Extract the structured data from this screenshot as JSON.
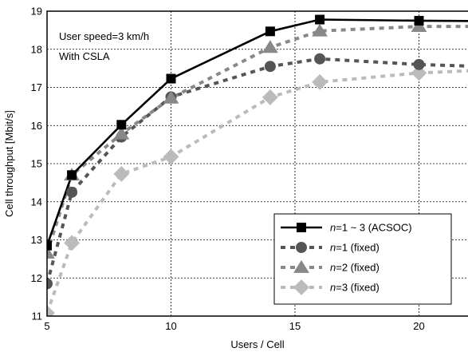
{
  "chart_data": {
    "type": "line",
    "title": "",
    "xlabel": "Users / Cell",
    "ylabel": "Cell throughput [Mbit/s]",
    "xlim": [
      5,
      22.5
    ],
    "ylim": [
      11,
      19
    ],
    "xticks": [
      5,
      10,
      15,
      20
    ],
    "yticks": [
      11,
      12,
      13,
      14,
      15,
      16,
      17,
      18,
      19
    ],
    "grid": true,
    "annotations": [
      "User speed=3 km/h",
      "With CSLA"
    ],
    "legend_position": "bottom-right",
    "series": [
      {
        "name": "n=1 ~ 3 (ACSOC)",
        "legend_var": "n",
        "legend_rest": "=1 ~ 3 (ACSOC)",
        "color": "#000000",
        "marker": "square",
        "dash": "solid",
        "x": [
          5,
          6,
          8,
          10,
          14,
          16,
          20,
          22.5
        ],
        "y": [
          12.85,
          14.7,
          16.02,
          17.23,
          18.47,
          18.78,
          18.75,
          18.74
        ]
      },
      {
        "name": "n=1 (fixed)",
        "legend_var": "n",
        "legend_rest": "=1 (fixed)",
        "color": "#555555",
        "marker": "circle",
        "dash": "dashed",
        "x": [
          5,
          6,
          8,
          10,
          14,
          16,
          20,
          22.5
        ],
        "y": [
          11.85,
          14.25,
          15.7,
          16.75,
          17.55,
          17.75,
          17.6,
          17.55
        ]
      },
      {
        "name": "n=2 (fixed)",
        "legend_var": "n",
        "legend_rest": "=2 (fixed)",
        "color": "#888888",
        "marker": "triangle",
        "dash": "dashed",
        "x": [
          5,
          6,
          8,
          10,
          14,
          16,
          20,
          22.5
        ],
        "y": [
          12.65,
          14.7,
          15.78,
          16.72,
          18.05,
          18.48,
          18.6,
          18.6
        ]
      },
      {
        "name": "n=3 (fixed)",
        "legend_var": "n",
        "legend_rest": "=3 (fixed)",
        "color": "#bbbbbb",
        "marker": "diamond",
        "dash": "dashed",
        "x": [
          5,
          6,
          8,
          10,
          14,
          16,
          20,
          22.5
        ],
        "y": [
          11.08,
          12.92,
          14.73,
          15.18,
          16.74,
          17.14,
          17.38,
          17.45
        ]
      }
    ]
  }
}
